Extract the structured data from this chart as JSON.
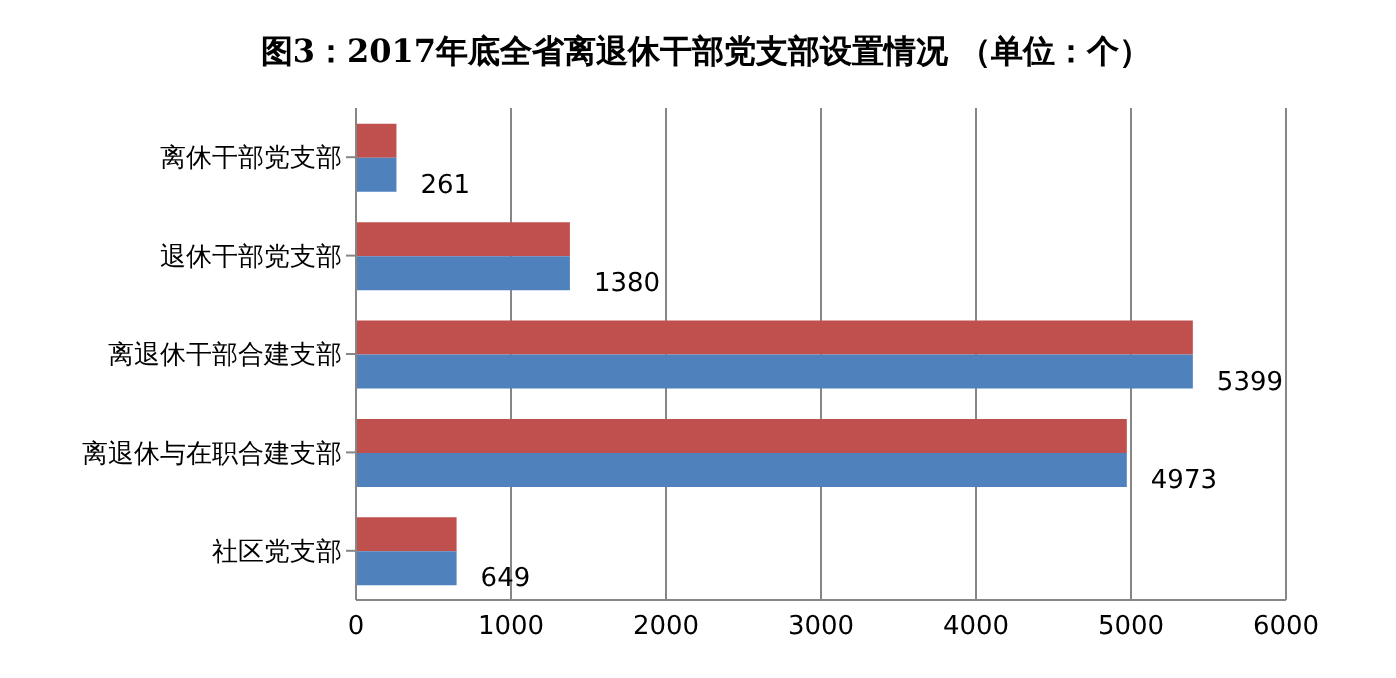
{
  "chart_data": {
    "type": "bar",
    "orientation": "horizontal",
    "title": "图3：2017年底全省离退休干部党支部设置情况 （单位：个）",
    "categories": [
      "离休干部党支部",
      "退休干部党支部",
      "离退休干部合建支部",
      "离退休与在职合建支部",
      "社区党支部"
    ],
    "series": [
      {
        "color": "#c0504d",
        "values": [
          261,
          1380,
          5399,
          4973,
          649
        ]
      },
      {
        "color": "#4f81bd",
        "values": [
          261,
          1380,
          5399,
          4973,
          649
        ],
        "value_labels": [
          "261",
          "1380",
          "5399",
          "4973",
          "649"
        ]
      }
    ],
    "xlim": [
      0,
      6000
    ],
    "xticks": [
      0,
      1000,
      2000,
      3000,
      4000,
      5000,
      6000
    ],
    "grid": "x",
    "legend": false
  }
}
